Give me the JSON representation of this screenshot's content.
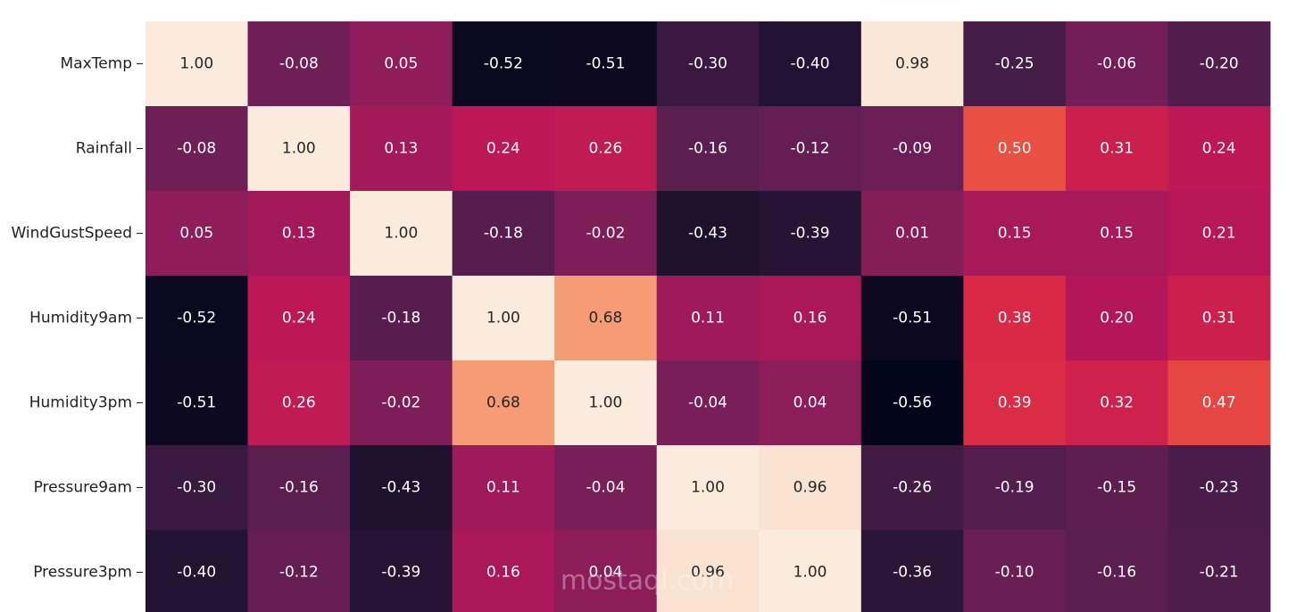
{
  "chart_data": {
    "type": "heatmap",
    "colormap": "rocket",
    "x": [
      null,
      null,
      null,
      null,
      null,
      null,
      null,
      null,
      null,
      null,
      null
    ],
    "y": [
      "MaxTemp",
      "Rainfall",
      "WindGustSpeed",
      "Humidity9am",
      "Humidity3pm",
      "Pressure9am",
      "Pressure3pm"
    ],
    "values": [
      [
        1.0,
        -0.08,
        0.05,
        -0.52,
        -0.51,
        -0.3,
        -0.4,
        0.98,
        -0.25,
        -0.06,
        -0.2
      ],
      [
        -0.08,
        1.0,
        0.13,
        0.24,
        0.26,
        -0.16,
        -0.12,
        -0.09,
        0.5,
        0.31,
        0.24
      ],
      [
        0.05,
        0.13,
        1.0,
        -0.18,
        -0.02,
        -0.43,
        -0.39,
        0.01,
        0.15,
        0.15,
        0.21
      ],
      [
        -0.52,
        0.24,
        -0.18,
        1.0,
        0.68,
        0.11,
        0.16,
        -0.51,
        0.38,
        0.2,
        0.31
      ],
      [
        -0.51,
        0.26,
        -0.02,
        0.68,
        1.0,
        -0.04,
        0.04,
        -0.56,
        0.39,
        0.32,
        0.47
      ],
      [
        -0.3,
        -0.16,
        -0.43,
        0.11,
        -0.04,
        1.0,
        0.96,
        -0.26,
        -0.19,
        -0.15,
        -0.23
      ],
      [
        -0.4,
        -0.12,
        -0.39,
        0.16,
        0.04,
        0.96,
        1.0,
        -0.36,
        -0.1,
        -0.16,
        -0.21
      ]
    ],
    "value_labels": [
      [
        "1.00",
        "-0.08",
        "0.05",
        "-0.52",
        "-0.51",
        "-0.30",
        "-0.40",
        "0.98",
        "-0.25",
        "-0.06",
        "-0.20"
      ],
      [
        "-0.08",
        "1.00",
        "0.13",
        "0.24",
        "0.26",
        "-0.16",
        "-0.12",
        "-0.09",
        "0.50",
        "0.31",
        "0.24"
      ],
      [
        "0.05",
        "0.13",
        "1.00",
        "-0.18",
        "-0.02",
        "-0.43",
        "-0.39",
        "0.01",
        "0.15",
        "0.15",
        "0.21"
      ],
      [
        "-0.52",
        "0.24",
        "-0.18",
        "1.00",
        "0.68",
        "0.11",
        "0.16",
        "-0.51",
        "0.38",
        "0.20",
        "0.31"
      ],
      [
        "-0.51",
        "0.26",
        "-0.02",
        "0.68",
        "1.00",
        "-0.04",
        "0.04",
        "-0.56",
        "0.39",
        "0.32",
        "0.47"
      ],
      [
        "-0.30",
        "-0.16",
        "-0.43",
        "0.11",
        "-0.04",
        "1.00",
        "0.96",
        "-0.26",
        "-0.19",
        "-0.15",
        "-0.23"
      ],
      [
        "-0.40",
        "-0.12",
        "-0.39",
        "0.16",
        "0.04",
        "0.96",
        "1.00",
        "-0.36",
        "-0.10",
        "-0.16",
        "-0.21"
      ]
    ],
    "watermark": "mostaql.com"
  }
}
